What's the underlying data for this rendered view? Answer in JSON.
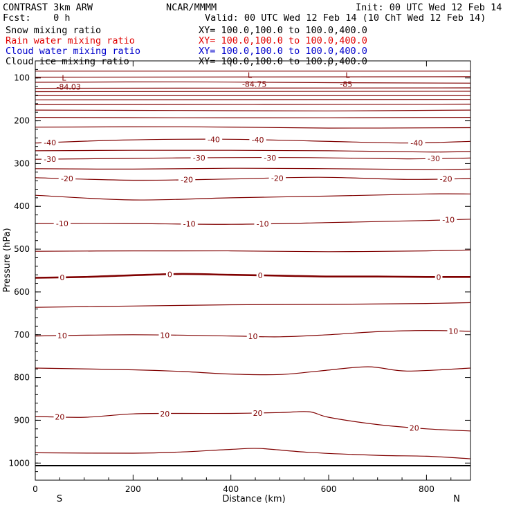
{
  "header": {
    "model": "CONTRAST  3km ARW",
    "center": "NCAR/MMMM",
    "init": "Init: 00 UTC Wed 12 Feb 14",
    "fcst": "Fcst:    0 h",
    "valid": "Valid: 00 UTC Wed 12 Feb 14 (10 ChT Wed 12 Feb 14)",
    "fields": [
      {
        "name": "Snow mixing ratio",
        "xy": "XY= 100.0,100.0 to 100.0,400.0",
        "color": "#000000"
      },
      {
        "name": "Rain water mixing ratio",
        "xy": "XY= 100.0,100.0 to 100.0,400.0",
        "color": "#e00000"
      },
      {
        "name": "Cloud water mixing ratio",
        "xy": "XY= 100.0,100.0 to 100.0,400.0",
        "color": "#0000cc"
      },
      {
        "name": "Cloud ice mixing ratio",
        "xy": "XY= 100.0,100.0 to 100.0,400.0",
        "color": "#000000"
      }
    ]
  },
  "chart_data": {
    "type": "line",
    "title": "",
    "xlabel": "Distance (km)",
    "ylabel": "Pressure (hPa)",
    "xlim": [
      0,
      890
    ],
    "ylim": [
      1040,
      60
    ],
    "xticks": [
      0,
      200,
      400,
      600,
      800
    ],
    "yticks": [
      100,
      200,
      300,
      400,
      500,
      600,
      700,
      800,
      900,
      1000
    ],
    "x_end_labels": {
      "left": "S",
      "right": "N"
    },
    "contour_color": "#800000",
    "ground_pressure": 1006,
    "lows": [
      {
        "x": 60,
        "p": 122,
        "label": "L",
        "value": "-84.03"
      },
      {
        "x": 440,
        "p": 116,
        "label": "L",
        "value": "-84.75"
      },
      {
        "x": 640,
        "p": 116,
        "label": "L",
        "value": "-85"
      }
    ],
    "isotherms": [
      {
        "name": "-40",
        "x": [
          0,
          180,
          380,
          560,
          760,
          890
        ],
        "y": [
          252,
          245,
          243,
          247,
          252,
          248
        ],
        "labels": [
          {
            "x": 30,
            "text": "-40"
          },
          {
            "x": 365,
            "text": "-40"
          },
          {
            "x": 455,
            "text": "-40"
          },
          {
            "x": 780,
            "text": "-40"
          }
        ]
      },
      {
        "name": "-30",
        "x": [
          0,
          180,
          380,
          560,
          760,
          890
        ],
        "y": [
          290,
          288,
          286,
          286,
          289,
          287
        ],
        "labels": [
          {
            "x": 30,
            "text": "-30"
          },
          {
            "x": 335,
            "text": "-30"
          },
          {
            "x": 480,
            "text": "-30"
          },
          {
            "x": 815,
            "text": "-30"
          }
        ]
      },
      {
        "name": "-20",
        "x": [
          0,
          200,
          400,
          580,
          760,
          890
        ],
        "y": [
          333,
          339,
          336,
          332,
          337,
          335
        ],
        "labels": [
          {
            "x": 65,
            "text": "-20"
          },
          {
            "x": 310,
            "text": "-20"
          },
          {
            "x": 495,
            "text": "-20"
          },
          {
            "x": 840,
            "text": "-20"
          }
        ]
      },
      {
        "name": "-10",
        "x": [
          0,
          180,
          400,
          600,
          800,
          890
        ],
        "y": [
          440,
          440,
          442,
          438,
          433,
          430
        ],
        "labels": [
          {
            "x": 55,
            "text": "-10"
          },
          {
            "x": 315,
            "text": "-10"
          },
          {
            "x": 465,
            "text": "-10"
          },
          {
            "x": 845,
            "text": "-10"
          }
        ]
      },
      {
        "name": "0",
        "x": [
          0,
          100,
          200,
          300,
          400,
          500,
          600,
          700,
          800,
          890
        ],
        "y": [
          567,
          565,
          561,
          558,
          560,
          562,
          564,
          564,
          565,
          565
        ],
        "labels": [
          {
            "x": 55,
            "text": "0"
          },
          {
            "x": 275,
            "text": "0"
          },
          {
            "x": 460,
            "text": "0"
          },
          {
            "x": 825,
            "text": "0"
          }
        ],
        "bold": true
      },
      {
        "name": "10",
        "x": [
          0,
          200,
          400,
          500,
          600,
          700,
          800,
          890
        ],
        "y": [
          703,
          700,
          703,
          705,
          700,
          693,
          690,
          692
        ],
        "labels": [
          {
            "x": 55,
            "text": "10"
          },
          {
            "x": 265,
            "text": "10"
          },
          {
            "x": 445,
            "text": "10"
          },
          {
            "x": 855,
            "text": "10"
          }
        ]
      },
      {
        "name": "20",
        "x": [
          0,
          100,
          200,
          300,
          400,
          500,
          560,
          600,
          700,
          800,
          890
        ],
        "y": [
          891,
          893,
          885,
          884,
          884,
          882,
          880,
          893,
          910,
          920,
          925
        ],
        "labels": [
          {
            "x": 50,
            "text": "20"
          },
          {
            "x": 265,
            "text": "20"
          },
          {
            "x": 455,
            "text": "20"
          },
          {
            "x": 775,
            "text": "20"
          }
        ]
      }
    ],
    "plain_lines": [
      {
        "x": [
          0,
          890
        ],
        "y": [
          84,
          84
        ]
      },
      {
        "x": [
          0,
          890
        ],
        "y": [
          98,
          97
        ]
      },
      {
        "x": [
          0,
          300,
          600,
          890
        ],
        "y": [
          110,
          109,
          111,
          112
        ]
      },
      {
        "x": [
          0,
          890
        ],
        "y": [
          124,
          123
        ]
      },
      {
        "x": [
          0,
          890
        ],
        "y": [
          132,
          131
        ]
      },
      {
        "x": [
          0,
          890
        ],
        "y": [
          141,
          141
        ]
      },
      {
        "x": [
          0,
          890
        ],
        "y": [
          151,
          150
        ]
      },
      {
        "x": [
          0,
          890
        ],
        "y": [
          162,
          161
        ]
      },
      {
        "x": [
          0,
          300,
          600,
          890
        ],
        "y": [
          175,
          176,
          177,
          175
        ]
      },
      {
        "x": [
          0,
          300,
          600,
          890
        ],
        "y": [
          192,
          193,
          193,
          192
        ]
      },
      {
        "x": [
          0,
          300,
          600,
          890
        ],
        "y": [
          215,
          214,
          217,
          216
        ]
      },
      {
        "x": [
          0,
          200,
          400,
          600,
          800,
          890
        ],
        "y": [
          270,
          269,
          269,
          270,
          273,
          272
        ]
      },
      {
        "x": [
          0,
          200,
          400,
          600,
          800,
          890
        ],
        "y": [
          312,
          313,
          311,
          312,
          314,
          313
        ]
      },
      {
        "x": [
          0,
          200,
          400,
          600,
          800,
          890
        ],
        "y": [
          374,
          385,
          380,
          376,
          371,
          371
        ]
      },
      {
        "x": [
          0,
          200,
          400,
          600,
          800,
          890
        ],
        "y": [
          505,
          504,
          504,
          506,
          504,
          502
        ]
      },
      {
        "x": [
          0,
          200,
          400,
          600,
          800,
          890
        ],
        "y": [
          636,
          633,
          630,
          629,
          627,
          625
        ]
      },
      {
        "x": [
          0,
          200,
          300,
          400,
          500,
          580,
          680,
          760,
          890
        ],
        "y": [
          778,
          782,
          786,
          792,
          793,
          785,
          775,
          785,
          778
        ]
      },
      {
        "x": [
          0,
          200,
          300,
          400,
          460,
          560,
          700,
          800,
          890
        ],
        "y": [
          976,
          977,
          974,
          968,
          966,
          975,
          982,
          984,
          990
        ]
      }
    ]
  }
}
